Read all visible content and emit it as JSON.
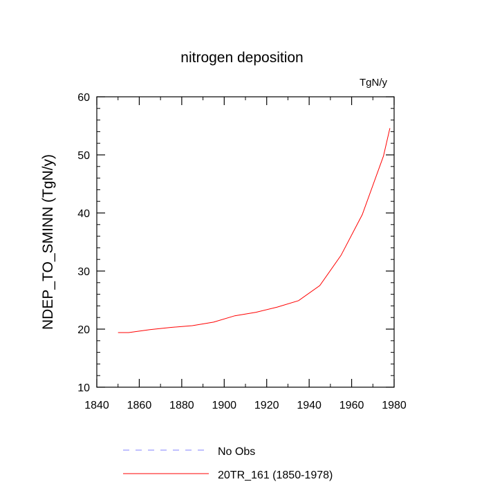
{
  "chart_data": {
    "type": "line",
    "title": "nitrogen deposition",
    "units_label": "TgN/y",
    "xlabel": "",
    "ylabel": "NDEP_TO_SMINN  (TgN/y)",
    "xlim": [
      1840,
      1980
    ],
    "ylim": [
      10,
      60
    ],
    "x_ticks": [
      1840,
      1860,
      1880,
      1900,
      1920,
      1940,
      1960,
      1980
    ],
    "x_minor_step": 10,
    "y_ticks": [
      10,
      20,
      30,
      40,
      50,
      60
    ],
    "y_minor_step": 2,
    "grid": false,
    "legend_position": "bottom",
    "series": [
      {
        "name": "No Obs",
        "color": "#8080ff",
        "style": "dashed",
        "x": [],
        "y": []
      },
      {
        "name": "20TR_161 (1850-1978)",
        "color": "#ff0000",
        "style": "solid",
        "x": [
          1850,
          1855,
          1865,
          1875,
          1885,
          1895,
          1905,
          1915,
          1925,
          1935,
          1945,
          1955,
          1965,
          1975,
          1978
        ],
        "y": [
          19.4,
          19.4,
          19.9,
          20.3,
          20.6,
          21.2,
          22.3,
          22.9,
          23.8,
          24.9,
          27.5,
          32.7,
          39.7,
          49.8,
          54.6
        ]
      }
    ]
  }
}
